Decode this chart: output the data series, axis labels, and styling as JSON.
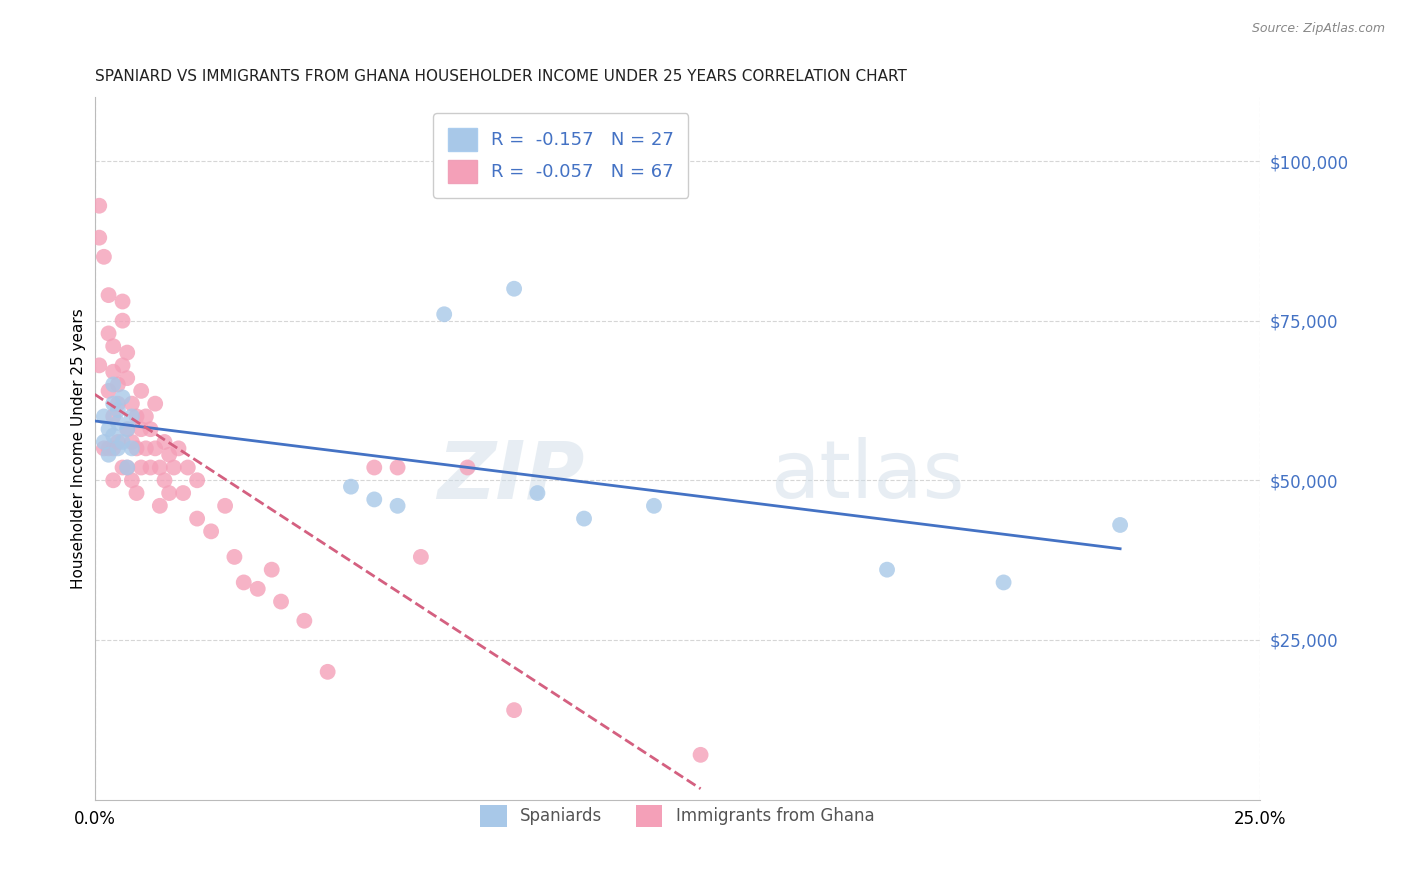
{
  "title": "SPANIARD VS IMMIGRANTS FROM GHANA HOUSEHOLDER INCOME UNDER 25 YEARS CORRELATION CHART",
  "source": "Source: ZipAtlas.com",
  "ylabel": "Householder Income Under 25 years",
  "ytick_labels": [
    "$25,000",
    "$50,000",
    "$75,000",
    "$100,000"
  ],
  "ytick_values": [
    25000,
    50000,
    75000,
    100000
  ],
  "ylim": [
    0,
    110000
  ],
  "xlim": [
    0.0,
    0.25
  ],
  "legend_spaniards": "Spaniards",
  "legend_ghana": "Immigrants from Ghana",
  "r_spaniards": -0.157,
  "n_spaniards": 27,
  "r_ghana": -0.057,
  "n_ghana": 67,
  "color_spaniards": "#a8c8e8",
  "color_ghana": "#f4a0b8",
  "color_spaniards_line": "#4472c4",
  "color_ghana_line": "#d46080",
  "background_color": "#ffffff",
  "grid_color": "#cccccc",
  "watermark_zip": "ZIP",
  "watermark_atlas": "atlas",
  "spaniards_x": [
    0.002,
    0.002,
    0.003,
    0.003,
    0.004,
    0.004,
    0.004,
    0.005,
    0.005,
    0.005,
    0.006,
    0.006,
    0.007,
    0.007,
    0.008,
    0.008,
    0.055,
    0.06,
    0.065,
    0.075,
    0.09,
    0.095,
    0.105,
    0.12,
    0.17,
    0.195,
    0.22
  ],
  "spaniards_y": [
    56000,
    60000,
    54000,
    58000,
    62000,
    57000,
    65000,
    55000,
    61000,
    59000,
    56000,
    63000,
    58000,
    52000,
    55000,
    60000,
    49000,
    47000,
    46000,
    76000,
    80000,
    48000,
    44000,
    46000,
    36000,
    34000,
    43000
  ],
  "ghana_x": [
    0.001,
    0.001,
    0.001,
    0.002,
    0.002,
    0.003,
    0.003,
    0.003,
    0.003,
    0.004,
    0.004,
    0.004,
    0.004,
    0.004,
    0.005,
    0.005,
    0.005,
    0.006,
    0.006,
    0.006,
    0.006,
    0.007,
    0.007,
    0.007,
    0.007,
    0.008,
    0.008,
    0.008,
    0.009,
    0.009,
    0.009,
    0.01,
    0.01,
    0.01,
    0.011,
    0.011,
    0.012,
    0.012,
    0.013,
    0.013,
    0.014,
    0.014,
    0.015,
    0.015,
    0.016,
    0.016,
    0.017,
    0.018,
    0.019,
    0.02,
    0.022,
    0.022,
    0.025,
    0.028,
    0.03,
    0.032,
    0.035,
    0.038,
    0.04,
    0.045,
    0.05,
    0.06,
    0.065,
    0.07,
    0.08,
    0.09,
    0.13
  ],
  "ghana_y": [
    93000,
    88000,
    68000,
    85000,
    55000,
    79000,
    73000,
    64000,
    55000,
    71000,
    67000,
    60000,
    55000,
    50000,
    65000,
    62000,
    56000,
    78000,
    75000,
    68000,
    52000,
    70000,
    66000,
    58000,
    52000,
    62000,
    56000,
    50000,
    60000,
    55000,
    48000,
    64000,
    58000,
    52000,
    60000,
    55000,
    58000,
    52000,
    62000,
    55000,
    52000,
    46000,
    56000,
    50000,
    54000,
    48000,
    52000,
    55000,
    48000,
    52000,
    44000,
    50000,
    42000,
    46000,
    38000,
    34000,
    33000,
    36000,
    31000,
    28000,
    20000,
    52000,
    52000,
    38000,
    52000,
    14000,
    7000
  ]
}
